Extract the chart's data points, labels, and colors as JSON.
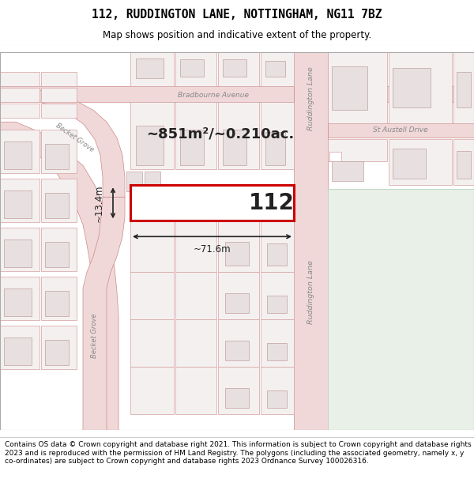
{
  "title": "112, RUDDINGTON LANE, NOTTINGHAM, NG11 7BZ",
  "subtitle": "Map shows position and indicative extent of the property.",
  "footer_text": "Contains OS data © Crown copyright and database right 2021. This information is subject to Crown copyright and database rights 2023 and is reproduced with the permission of HM Land Registry. The polygons (including the associated geometry, namely x, y co-ordinates) are subject to Crown copyright and database rights 2023 Ordnance Survey 100026316.",
  "map_bg": "#f7f4f2",
  "road_color": "#f0d8d8",
  "road_outline": "#cc8888",
  "highlight_fill": "#ffffff",
  "highlight_outline": "#cc0000",
  "plot_fill": "#f5f0f0",
  "plot_outline": "#d4a0a0",
  "bldg_fill": "#e8e0e0",
  "bldg_outline": "#c0a0a0",
  "green_fill": "#e8f0e8",
  "green_outline": "#c0d8c0",
  "road_label_color": "#888888",
  "area_text": "~851m²/~0.210ac.",
  "number_text": "112",
  "dim_width": "~71.6m",
  "dim_height": "~13.4m",
  "label_ruddington": "Ruddington Lane",
  "label_bradbourne": "Bradbourne Avenue",
  "label_becket": "Becket Grove",
  "label_st_austell": "St Austell Drive",
  "figsize": [
    6.0,
    6.25
  ],
  "dpi": 100
}
